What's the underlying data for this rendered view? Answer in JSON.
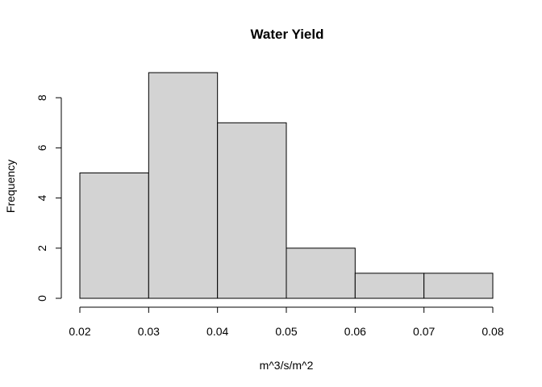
{
  "chart_data": {
    "type": "bar",
    "title": "Water Yield",
    "xlabel": "m^3/s/m^2",
    "ylabel": "Frequency",
    "bins": [
      {
        "start": 0.02,
        "end": 0.03,
        "count": 5
      },
      {
        "start": 0.03,
        "end": 0.04,
        "count": 9
      },
      {
        "start": 0.04,
        "end": 0.05,
        "count": 7
      },
      {
        "start": 0.05,
        "end": 0.06,
        "count": 2
      },
      {
        "start": 0.06,
        "end": 0.07,
        "count": 1
      },
      {
        "start": 0.07,
        "end": 0.08,
        "count": 1
      }
    ],
    "xticks": [
      "0.02",
      "0.03",
      "0.04",
      "0.05",
      "0.06",
      "0.07",
      "0.08"
    ],
    "yticks": [
      "0",
      "2",
      "4",
      "6",
      "8"
    ],
    "xlim": [
      0.02,
      0.08
    ],
    "ylim": [
      0,
      9
    ],
    "grid": false,
    "bar_fill": "#d3d3d3",
    "bar_stroke": "#000000"
  }
}
